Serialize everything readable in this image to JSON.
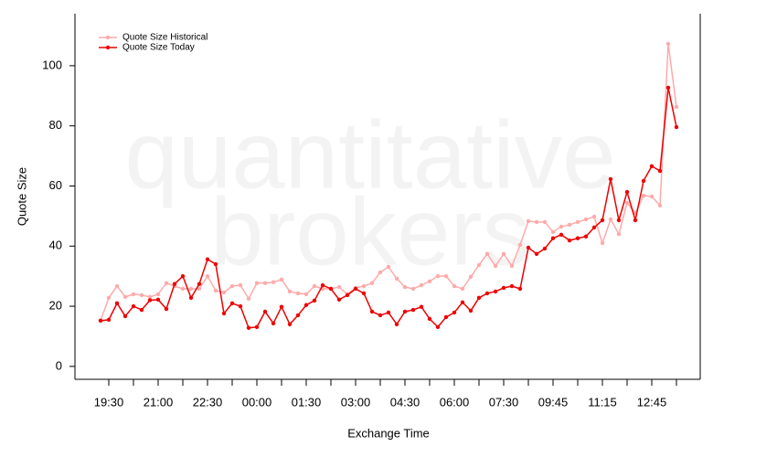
{
  "chart_data": {
    "type": "line",
    "watermark": [
      "quantitative",
      "brokers"
    ],
    "x_label": "Exchange Time",
    "y_label": "Quote Size",
    "categories": [
      null,
      "19:30",
      null,
      null,
      null,
      null,
      null,
      "21:00",
      null,
      null,
      null,
      null,
      null,
      "22:30",
      null,
      null,
      null,
      null,
      null,
      "00:00",
      null,
      null,
      null,
      null,
      null,
      "01:30",
      null,
      null,
      null,
      null,
      null,
      "03:00",
      null,
      null,
      null,
      null,
      null,
      "04:30",
      null,
      null,
      null,
      null,
      null,
      "06:00",
      null,
      null,
      null,
      null,
      null,
      "07:30",
      null,
      null,
      null,
      null,
      null,
      "09:45",
      null,
      null,
      null,
      null,
      null,
      "11:15",
      null,
      null,
      null,
      null,
      null,
      "12:45",
      null,
      null,
      null
    ],
    "series": [
      {
        "name": "Quote Size Historical",
        "color": "#ffaaaa",
        "values": [
          15.2,
          22.8,
          26.7,
          23.1,
          24,
          23.7,
          23.1,
          24,
          27.7,
          26.7,
          25.8,
          25.8,
          25.8,
          30,
          25.2,
          24.6,
          26.7,
          27,
          22.5,
          27.7,
          27.7,
          28,
          28.9,
          24.9,
          24.3,
          24,
          26.7,
          25.8,
          25.8,
          26.4,
          24,
          26.1,
          26.7,
          27.7,
          31.3,
          33.1,
          29.2,
          26.4,
          25.8,
          27,
          28.3,
          30,
          30,
          26.7,
          25.8,
          29.8,
          33.7,
          37.4,
          33.4,
          37.4,
          33.4,
          40.4,
          48.3,
          48,
          48,
          44.7,
          46.5,
          47.1,
          48,
          48.9,
          49.8,
          41,
          48.9,
          44,
          54.4,
          51,
          56.8,
          56.5,
          53.5,
          107.3,
          86.3
        ]
      },
      {
        "name": "Quote Size Today",
        "color": "#ee0000",
        "values": [
          15.2,
          15.5,
          21,
          16.7,
          20,
          18.8,
          22,
          22.2,
          19.1,
          27.4,
          30,
          22.8,
          27.4,
          35.6,
          34,
          17.6,
          21,
          20,
          12.8,
          13.1,
          18.2,
          14.3,
          19.8,
          14,
          17,
          20.4,
          21.9,
          27,
          25.8,
          22.2,
          23.7,
          25.8,
          24.3,
          18.2,
          17,
          17.9,
          14,
          18.2,
          18.8,
          19.8,
          15.8,
          13.1,
          16.4,
          17.9,
          21.3,
          18.5,
          22.8,
          24.3,
          24.9,
          26.1,
          26.7,
          25.8,
          39.5,
          37.4,
          39.2,
          42.6,
          43.8,
          41.9,
          42.6,
          43.2,
          46.2,
          48.6,
          62.3,
          48.6,
          58,
          48.6,
          61.7,
          66.6,
          65,
          92.7,
          79.6
        ]
      }
    ],
    "ylim": [
      -4.3,
      117.3
    ],
    "yticks": [
      0,
      20,
      40,
      60,
      80,
      100
    ],
    "legend": "top-left"
  }
}
